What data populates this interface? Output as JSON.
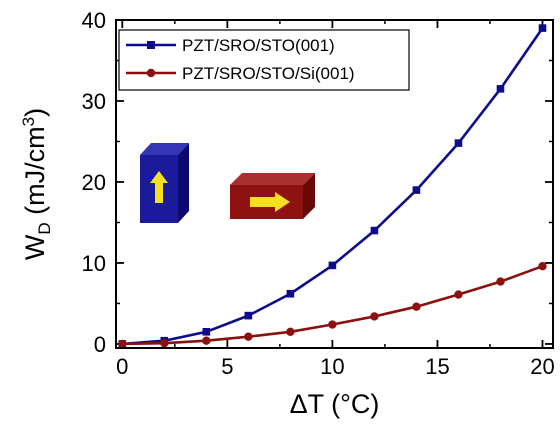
{
  "chart_data": {
    "type": "line",
    "title": "",
    "xlabel": "ΔT (°C)",
    "ylabel_main": "W",
    "ylabel_sub": "D",
    "ylabel_unit": " (mJ/cm",
    "ylabel_sup": "3",
    "ylabel_close": ")",
    "xlim": [
      -0.3,
      20.5
    ],
    "ylim": [
      -0.5,
      40
    ],
    "xticks": [
      0,
      5,
      10,
      15,
      20
    ],
    "xtick_labels": [
      "0",
      "5",
      "10",
      "15",
      "20"
    ],
    "yticks": [
      0,
      10,
      20,
      30,
      40
    ],
    "ytick_labels": [
      "0",
      "10",
      "20",
      "30",
      "40"
    ],
    "grid": false,
    "legend_placement": "top-left",
    "series": [
      {
        "name": "PZT/SRO/STO(001)",
        "color": "#0d0d8c",
        "marker": "square",
        "x": [
          0,
          2,
          4,
          6,
          8,
          10,
          12,
          14,
          16,
          18,
          20
        ],
        "y": [
          0.0,
          0.4,
          1.5,
          3.5,
          6.2,
          9.7,
          14.0,
          19.0,
          24.8,
          31.5,
          39.0
        ]
      },
      {
        "name": "PZT/SRO/STO/Si(001)",
        "color": "#8b1010",
        "marker": "circle",
        "x": [
          0,
          2,
          4,
          6,
          8,
          10,
          12,
          14,
          16,
          18,
          20
        ],
        "y": [
          0.0,
          0.1,
          0.4,
          0.9,
          1.5,
          2.4,
          3.4,
          4.6,
          6.1,
          7.7,
          9.6
        ]
      }
    ],
    "insets": [
      {
        "name": "blue-box",
        "face": "#1a1a9a",
        "top": "#3535b8",
        "side": "#0a0a70",
        "arrow": "up",
        "arrow_color": "#f5e020"
      },
      {
        "name": "red-box",
        "face": "#8f1212",
        "top": "#a83030",
        "side": "#6a0808",
        "arrow": "right",
        "arrow_color": "#f5e020"
      }
    ]
  }
}
